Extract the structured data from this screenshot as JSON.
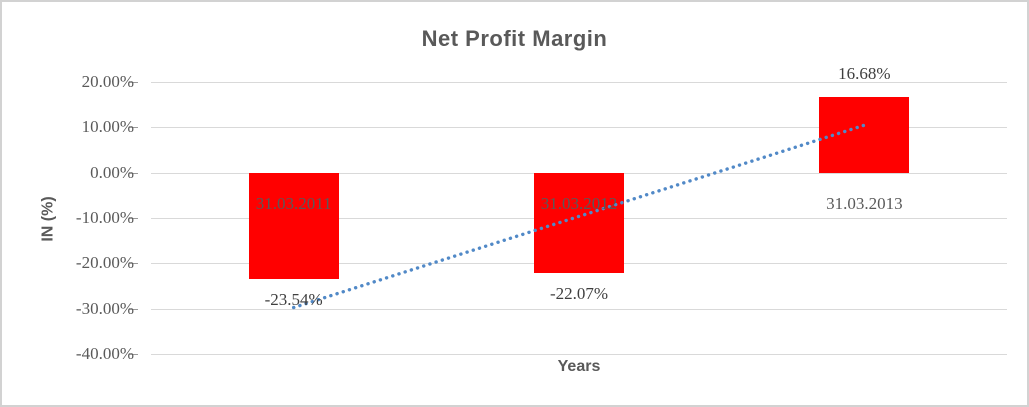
{
  "chart_data": {
    "type": "bar",
    "title": "Net Profit Margin",
    "xlabel": "Years",
    "ylabel": "IN (%)",
    "categories": [
      "31.03.2011",
      "31.03.2012",
      "31.03.2013"
    ],
    "values": [
      -23.54,
      -22.07,
      16.68
    ],
    "data_labels": [
      "-23.54%",
      "-22.07%",
      "16.68%"
    ],
    "yticks": [
      20,
      10,
      0,
      -10,
      -20,
      -30,
      -40
    ],
    "ytick_labels": [
      "20.00%",
      "10.00%",
      "0.00%",
      "-10.00%",
      "-20.00%",
      "-30.00%",
      "-40.00%"
    ],
    "ylim": [
      -40,
      20
    ],
    "grid": true,
    "legend": false,
    "trendline": {
      "type": "linear",
      "style": "dotted",
      "color": "#5189c7"
    },
    "colors": {
      "bar": "#ff0000",
      "title": "#595959",
      "tick_label": "#595959",
      "category_label": "#595959",
      "data_label": "#3f3f3f",
      "gridline": "#d9d9d9",
      "frame": "#d2d2d2",
      "background": "#ffffff"
    }
  }
}
